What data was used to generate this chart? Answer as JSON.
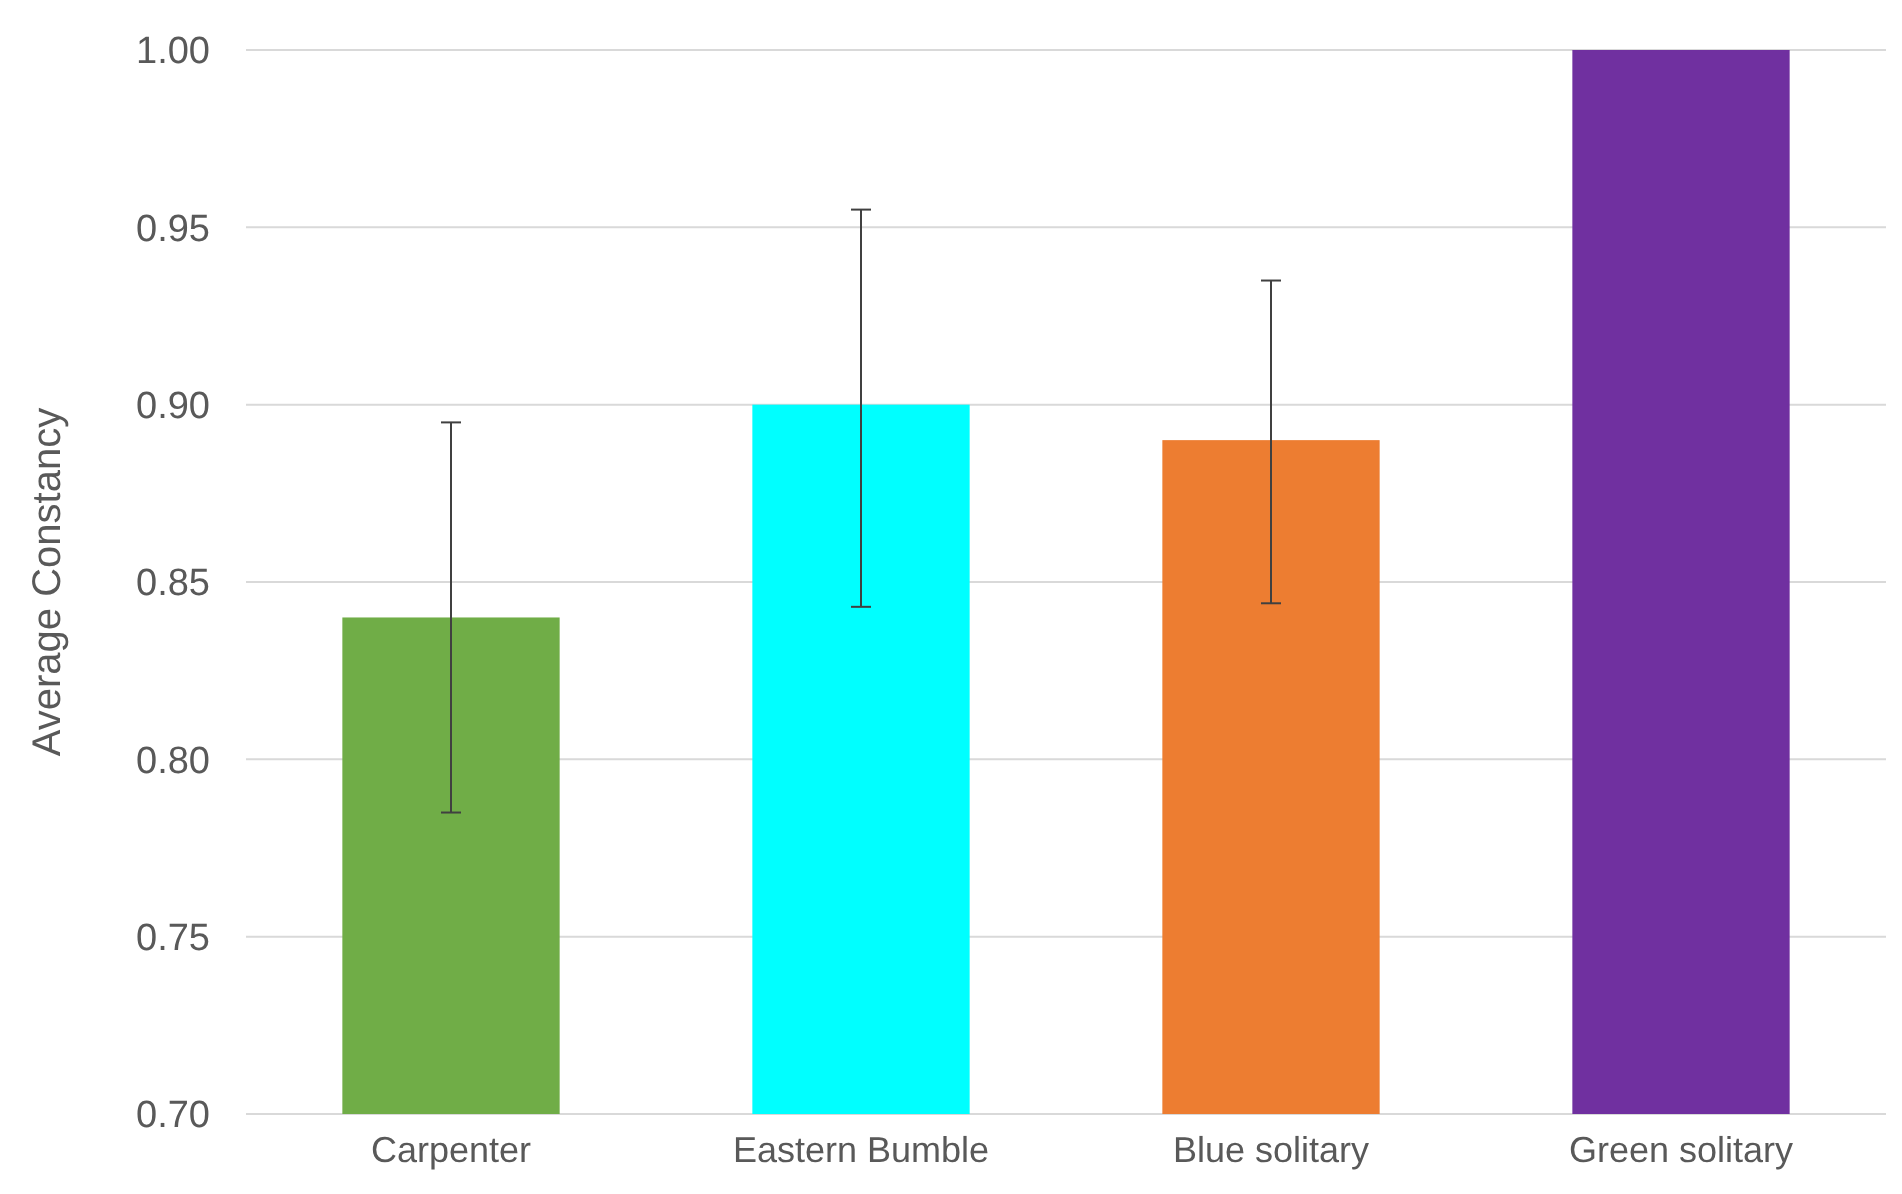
{
  "chart_data": {
    "type": "bar",
    "ylabel": "Average Constancy",
    "categories": [
      "Carpenter",
      "Eastern Bumble",
      "Blue solitary",
      "Green solitary"
    ],
    "values": [
      0.84,
      0.9,
      0.89,
      1.0
    ],
    "colors": [
      "#70ad47",
      "#00ffff",
      "#ed7d31",
      "#7030a0"
    ],
    "errors": [
      [
        0.785,
        0.895
      ],
      [
        0.843,
        0.955
      ],
      [
        0.844,
        0.935
      ],
      null
    ],
    "ylim": [
      0.7,
      1.0
    ],
    "yticks": [
      {
        "value": 0.7,
        "label": "0.70"
      },
      {
        "value": 0.75,
        "label": "0.75"
      },
      {
        "value": 0.8,
        "label": "0.80"
      },
      {
        "value": 0.85,
        "label": "0.85"
      },
      {
        "value": 0.9,
        "label": "0.90"
      },
      {
        "value": 0.95,
        "label": "0.95"
      },
      {
        "value": 1.0,
        "label": "1.00"
      }
    ],
    "grid": "y"
  }
}
